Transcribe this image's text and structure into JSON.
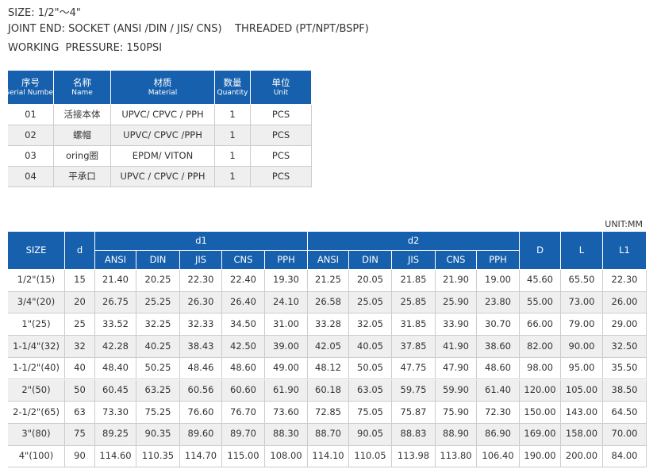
{
  "header": {
    "size": "SIZE: 1/2\"～4\"",
    "joint_end": "JOINT END: SOCKET (ANSI /DIN / JIS/ CNS)    THREADED (PT/NPT/BSPF)",
    "working_pressure": "WORKING  PRESSURE: 150PSI"
  },
  "parts_table": {
    "columns": [
      {
        "zh": "序号",
        "en": "Serial Number"
      },
      {
        "zh": "名称",
        "en": "Name"
      },
      {
        "zh": "材质",
        "en": "Material"
      },
      {
        "zh": "数量",
        "en": "Quantity"
      },
      {
        "zh": "单位",
        "en": "Unit"
      }
    ],
    "rows": [
      [
        "01",
        "活接本体",
        "UPVC/ CPVC / PPH",
        "1",
        "PCS"
      ],
      [
        "02",
        "螺帽",
        "UPVC/ CPVC /PPH",
        "1",
        "PCS"
      ],
      [
        "03",
        "oring圈",
        "EPDM/ VITON",
        "1",
        "PCS"
      ],
      [
        "04",
        "平承口",
        "UPVC / CPVC / PPH",
        "1",
        "PCS"
      ]
    ]
  },
  "unit": "UNIT:MM",
  "dimension_table": {
    "columns": [
      "SIZE",
      "d",
      "d1",
      "d2",
      "D",
      "L",
      "L1"
    ],
    "sub_columns": [
      "ANSI",
      "DIN",
      "JIS",
      "CNS",
      "PPH"
    ],
    "rows": [
      [
        "1/2\"(15)",
        "15",
        "21.40",
        "20.25",
        "22.30",
        "22.40",
        "19.30",
        "21.25",
        "20.05",
        "21.85",
        "21.90",
        "19.00",
        "45.60",
        "65.50",
        "22.30"
      ],
      [
        "3/4\"(20)",
        "20",
        "26.75",
        "25.25",
        "26.30",
        "26.40",
        "24.10",
        "26.58",
        "25.05",
        "25.85",
        "25.90",
        "23.80",
        "55.00",
        "73.00",
        "26.00"
      ],
      [
        "1\"(25)",
        "25",
        "33.52",
        "32.25",
        "32.33",
        "34.50",
        "31.00",
        "33.28",
        "32.05",
        "31.85",
        "33.90",
        "30.70",
        "66.00",
        "79.00",
        "29.00"
      ],
      [
        "1-1/4\"(32)",
        "32",
        "42.28",
        "40.25",
        "38.43",
        "42.50",
        "39.00",
        "42.05",
        "40.05",
        "37.85",
        "41.90",
        "38.60",
        "82.00",
        "90.00",
        "32.50"
      ],
      [
        "1-1/2\"(40)",
        "40",
        "48.40",
        "50.25",
        "48.46",
        "48.60",
        "49.00",
        "48.12",
        "50.05",
        "47.75",
        "47.90",
        "48.60",
        "98.00",
        "95.00",
        "35.50"
      ],
      [
        "2\"(50)",
        "50",
        "60.45",
        "63.25",
        "60.56",
        "60.60",
        "61.90",
        "60.18",
        "63.05",
        "59.75",
        "59.90",
        "61.40",
        "120.00",
        "105.00",
        "38.50"
      ],
      [
        "2-1/2\"(65)",
        "63",
        "73.30",
        "75.25",
        "76.60",
        "76.70",
        "73.60",
        "72.85",
        "75.05",
        "75.87",
        "75.90",
        "72.30",
        "150.00",
        "143.00",
        "64.50"
      ],
      [
        "3\"(80)",
        "75",
        "89.25",
        "90.35",
        "89.60",
        "89.70",
        "88.30",
        "88.70",
        "90.05",
        "88.83",
        "88.90",
        "86.90",
        "169.00",
        "158.00",
        "70.00"
      ],
      [
        "4\"(100)",
        "90",
        "114.60",
        "110.35",
        "114.70",
        "115.00",
        "108.00",
        "114.10",
        "110.05",
        "113.98",
        "113.80",
        "106.40",
        "190.00",
        "200.00",
        "84.00"
      ]
    ]
  }
}
